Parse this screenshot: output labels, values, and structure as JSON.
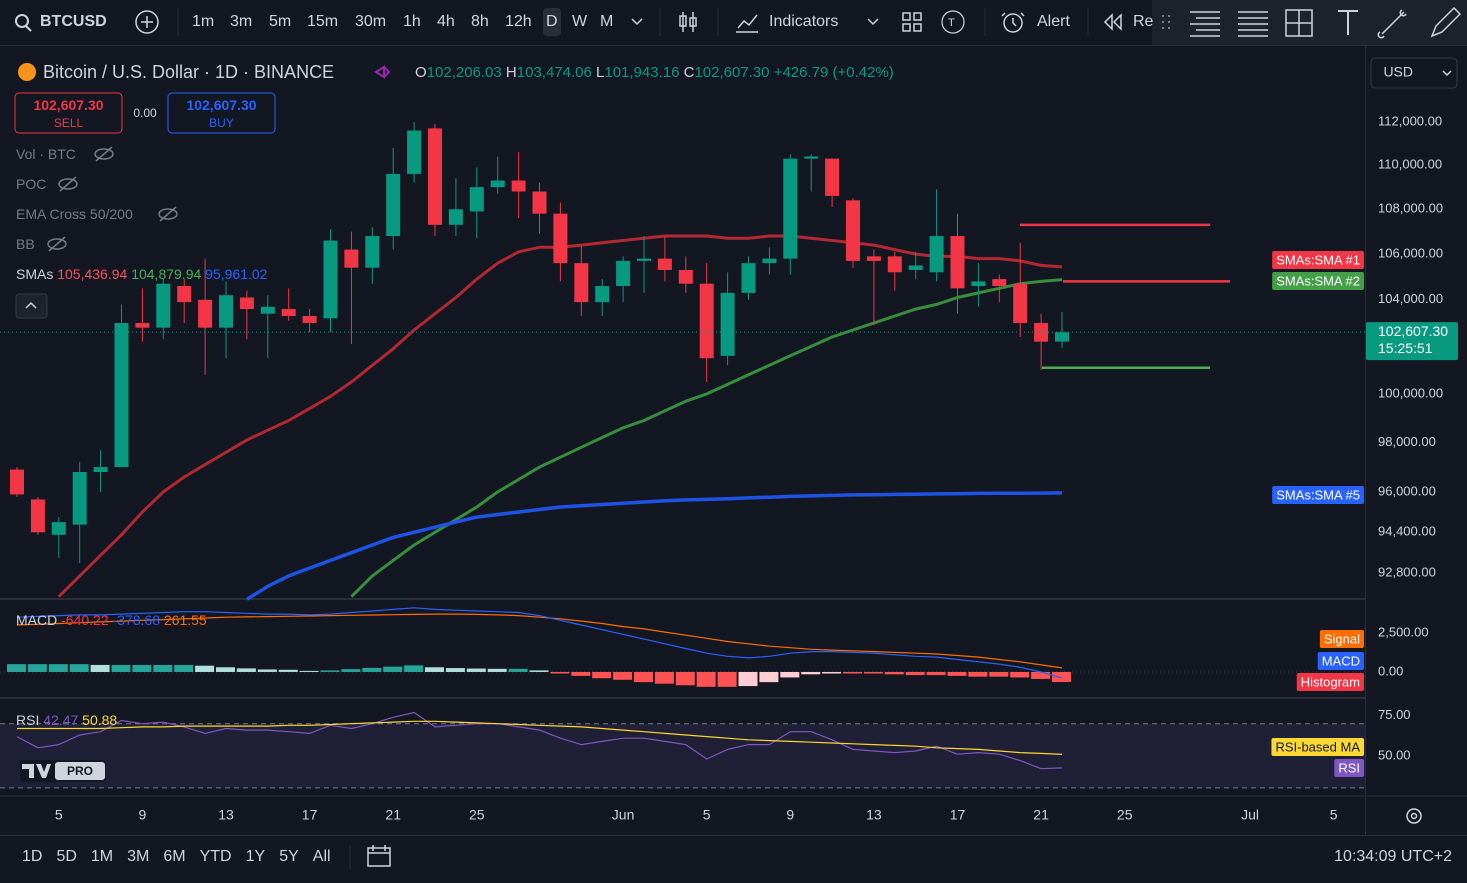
{
  "toolbar": {
    "symbol": "BTCUSD",
    "intervals": [
      "1m",
      "3m",
      "5m",
      "15m",
      "30m",
      "1h",
      "4h",
      "8h",
      "12h",
      "D",
      "W",
      "M"
    ],
    "indicators": "Indicators",
    "badge": "T",
    "alert": "Alert",
    "replay": "Re"
  },
  "legend": {
    "title": "Bitcoin / U.S. Dollar · 1D · BINANCE",
    "o": "O",
    "open": "102,206.03",
    "h": "H",
    "high": "103,474.06",
    "l": "L",
    "low": "101,943.16",
    "c": "C",
    "close": "102,607.30",
    "change": "+426.79 (+0.42%)"
  },
  "trade": {
    "sell_price": "102,607.30",
    "sell": "SELL",
    "spread": "0.00",
    "buy_price": "102,607.30",
    "buy": "BUY"
  },
  "indicators": [
    {
      "name": "Vol · BTC"
    },
    {
      "name": "POC"
    },
    {
      "name": "EMA Cross 50/200"
    },
    {
      "name": "BB"
    }
  ],
  "sma_legend": {
    "name": "SMAs",
    "values": [
      "105,436.94",
      "104,879.94",
      "95,961.02"
    ]
  },
  "currency": "USD",
  "ranges": [
    "1D",
    "5D",
    "1M",
    "3M",
    "6M",
    "YTD",
    "1Y",
    "5Y",
    "All"
  ],
  "clock": "10:34:09 UTC+2",
  "logo": "PRO",
  "chart_data": [
    {
      "type": "candlestick",
      "log_scale": true,
      "grid": false,
      "up_color": "#089981",
      "down_color": "#f23645",
      "categories": [
        null,
        null,
        "5",
        null,
        null,
        null,
        "9",
        null,
        null,
        null,
        "13",
        null,
        null,
        null,
        "17",
        null,
        null,
        null,
        "21",
        null,
        null,
        null,
        "25",
        null,
        null,
        null,
        null,
        null,
        null,
        "Jun",
        null,
        null,
        null,
        "5",
        null,
        null,
        null,
        "9",
        null,
        null,
        null,
        "13",
        null,
        null,
        null,
        "17",
        null,
        null,
        null,
        "21",
        null,
        null,
        null,
        "25",
        null,
        null,
        null,
        null,
        null,
        "Jul",
        null,
        null,
        null,
        "5"
      ],
      "open": [
        96900,
        95700,
        94300,
        94700,
        96800,
        97000,
        103000,
        102800,
        104600,
        104000,
        102800,
        104100,
        103400,
        103600,
        103300,
        103200,
        106200,
        105400,
        106800,
        109600,
        111700,
        107300,
        107900,
        109000,
        109300,
        108800,
        107800,
        105600,
        103900,
        104600,
        105700,
        105800,
        105300,
        104700,
        101600,
        104300,
        105600,
        105800,
        110300,
        110300,
        108400,
        105900,
        105900,
        105300,
        105200,
        106800,
        104600,
        104900,
        104700,
        103000,
        102206.03,
        null,
        null,
        null,
        null,
        null,
        null,
        null,
        null,
        null,
        null,
        null,
        null,
        null
      ],
      "high": [
        97000,
        95800,
        95000,
        97200,
        97700,
        103800,
        104500,
        104900,
        104900,
        105800,
        104800,
        104400,
        104200,
        104500,
        103600,
        107100,
        107000,
        107200,
        110800,
        112000,
        111900,
        109400,
        109900,
        110400,
        110600,
        109200,
        108300,
        106400,
        104900,
        105900,
        106800,
        106800,
        105900,
        105600,
        105200,
        105900,
        106300,
        110500,
        110500,
        110300,
        108500,
        106200,
        106100,
        106100,
        108900,
        107800,
        105600,
        105100,
        106500,
        103400,
        103474.06,
        null,
        null,
        null,
        null,
        null,
        null,
        null,
        null,
        null,
        null,
        null,
        null,
        null
      ],
      "low": [
        95800,
        94300,
        93400,
        93200,
        96000,
        97000,
        102200,
        102300,
        103000,
        100800,
        101500,
        102300,
        101500,
        103100,
        102600,
        102600,
        102100,
        104700,
        106200,
        109200,
        106800,
        106800,
        106700,
        108700,
        107600,
        106900,
        104800,
        103300,
        103300,
        103900,
        104300,
        104800,
        104300,
        100500,
        101200,
        104000,
        105100,
        105100,
        108800,
        108100,
        105400,
        102900,
        104400,
        104900,
        104800,
        103400,
        103700,
        103900,
        102400,
        101000,
        101943.16,
        null,
        null,
        null,
        null,
        null,
        null,
        null,
        null,
        null,
        null,
        null,
        null,
        null
      ],
      "close": [
        95900,
        94400,
        94800,
        96800,
        97000,
        103000,
        102800,
        104700,
        103900,
        102800,
        104200,
        103600,
        103700,
        103300,
        103000,
        106600,
        105400,
        106800,
        109600,
        111600,
        107300,
        108000,
        109000,
        109300,
        108800,
        107800,
        105600,
        103900,
        104600,
        105700,
        105800,
        105300,
        104700,
        101500,
        104300,
        105600,
        105800,
        110300,
        110400,
        108600,
        105700,
        105700,
        105200,
        105500,
        106800,
        104500,
        104800,
        104600,
        103000,
        102200,
        102607.3,
        null,
        null,
        null,
        null,
        null,
        null,
        null,
        null,
        null,
        null,
        null,
        null,
        null
      ],
      "series": [
        {
          "name": "SMAs:SMA #1",
          "color": "#f23645",
          "line_color": "#b22833",
          "values": [
            null,
            null,
            91900,
            92700,
            93500,
            94300,
            95200,
            96000,
            96600,
            97100,
            97600,
            98100,
            98500,
            98900,
            99400,
            99900,
            100500,
            101200,
            101900,
            102700,
            103400,
            104100,
            104900,
            105600,
            106100,
            106300,
            106300,
            106400,
            106500,
            106600,
            106700,
            106800,
            106800,
            106800,
            106700,
            106700,
            106800,
            106800,
            106700,
            106600,
            106500,
            106400,
            106200,
            106000,
            105900,
            105900,
            105800,
            105800,
            105700,
            105500,
            105436.94,
            null,
            null,
            null,
            null,
            null,
            null,
            null,
            null,
            null,
            null,
            null,
            null,
            null
          ]
        },
        {
          "name": "SMAs:SMA #2",
          "color": "#43a047",
          "line_color": "#388e3c",
          "values": [
            null,
            null,
            null,
            null,
            null,
            null,
            null,
            null,
            null,
            null,
            null,
            null,
            null,
            null,
            null,
            null,
            91900,
            92700,
            93300,
            93900,
            94400,
            94900,
            95400,
            96000,
            96500,
            97000,
            97400,
            97800,
            98200,
            98600,
            98900,
            99300,
            99700,
            100000,
            100400,
            100800,
            101200,
            101600,
            102000,
            102400,
            102700,
            103000,
            103300,
            103600,
            103800,
            104100,
            104300,
            104500,
            104700,
            104800,
            104879.94,
            null,
            null,
            null,
            null,
            null,
            null,
            null,
            null,
            null,
            null,
            null,
            null,
            null
          ]
        },
        {
          "name": "SMAs:SMA #5",
          "color": "#2962ff",
          "line_color": "#1e53e5",
          "values": [
            null,
            null,
            null,
            null,
            null,
            null,
            null,
            null,
            null,
            null,
            null,
            91800,
            92300,
            92700,
            93000,
            93300,
            93600,
            93900,
            94200,
            94400,
            94600,
            94800,
            95000,
            95100,
            95200,
            95300,
            95400,
            95450,
            95500,
            95550,
            95600,
            95650,
            95680,
            95700,
            95730,
            95760,
            95790,
            95820,
            95840,
            95860,
            95880,
            95890,
            95900,
            95910,
            95920,
            95930,
            95940,
            95945,
            95950,
            95955,
            95961.02,
            null,
            null,
            null,
            null,
            null,
            null,
            null,
            null,
            null,
            null,
            null,
            null,
            null
          ]
        }
      ],
      "drawings": [
        {
          "value": 107300,
          "color": "#f23645"
        },
        {
          "value": 104800,
          "color": "#f23645"
        },
        {
          "value": 101100,
          "color": "#4caf50"
        }
      ],
      "price_label": {
        "price": "102,607.30",
        "countdown": "15:25:51"
      },
      "ylim": [
        91850,
        115600
      ],
      "yticks": [
        {
          "value": 112000,
          "label": "112,000.00"
        },
        {
          "value": 110000,
          "label": "110,000.00"
        },
        {
          "value": 108000,
          "label": "108,000.00"
        },
        {
          "value": 106000,
          "label": "106,000.00"
        },
        {
          "value": 104000,
          "label": "104,000.00"
        },
        {
          "value": 100000,
          "label": "100,000.00"
        },
        {
          "value": 98000,
          "label": "98,000.00"
        },
        {
          "value": 96000,
          "label": "96,000.00"
        },
        {
          "value": 94400,
          "label": "94,400.00"
        },
        {
          "value": 92800,
          "label": "92,800.00"
        }
      ]
    },
    {
      "type": "macd",
      "title": "MACD",
      "value_labels": [
        "-640.22",
        "-378.68",
        "261.55"
      ],
      "series": [
        {
          "name": "Signal",
          "color": "#ff6d00",
          "values": [
            3000,
            3050,
            3100,
            3150,
            3200,
            3250,
            3300,
            3350,
            3400,
            3450,
            3500,
            3520,
            3540,
            3560,
            3580,
            3600,
            3620,
            3640,
            3660,
            3680,
            3700,
            3700,
            3680,
            3650,
            3600,
            3500,
            3400,
            3250,
            3100,
            2900,
            2750,
            2550,
            2350,
            2150,
            1950,
            1800,
            1650,
            1550,
            1450,
            1400,
            1350,
            1300,
            1250,
            1200,
            1150,
            1050,
            950,
            800,
            650,
            450,
            261.55,
            null,
            null,
            null,
            null,
            null,
            null,
            null,
            null,
            null,
            null,
            null,
            null,
            null
          ]
        },
        {
          "name": "MACD",
          "color": "#2962ff",
          "values": [
            3500,
            3550,
            3600,
            3650,
            3650,
            3700,
            3750,
            3800,
            3850,
            3850,
            3800,
            3750,
            3700,
            3700,
            3650,
            3700,
            3800,
            3900,
            4000,
            4100,
            4000,
            3950,
            3900,
            3850,
            3800,
            3600,
            3300,
            3000,
            2700,
            2400,
            2100,
            1800,
            1500,
            1200,
            1000,
            900,
            1000,
            1200,
            1300,
            1300,
            1250,
            1200,
            1100,
            1000,
            950,
            800,
            650,
            500,
            300,
            0,
            -378.68,
            null,
            null,
            null,
            null,
            null,
            null,
            null,
            null,
            null,
            null,
            null,
            null,
            null
          ]
        },
        {
          "name": "Histogram",
          "color": "#f23645",
          "shades": [
            "#26a69a",
            "#b2dfdb",
            "#ffcdd2",
            "#ff5252"
          ],
          "values": [
            500,
            500,
            500,
            500,
            450,
            450,
            450,
            450,
            450,
            400,
            300,
            230,
            160,
            140,
            70,
            100,
            180,
            260,
            340,
            420,
            300,
            250,
            220,
            200,
            200,
            100,
            -100,
            -250,
            -400,
            -500,
            -650,
            -750,
            -850,
            -950,
            -950,
            -900,
            -650,
            -350,
            -150,
            -100,
            -100,
            -100,
            -150,
            -200,
            -200,
            -250,
            -300,
            -300,
            -350,
            -450,
            -640.22,
            null,
            null,
            null,
            null,
            null,
            null,
            null,
            null,
            null,
            null,
            null,
            null,
            null
          ]
        }
      ],
      "ylim": [
        -1600,
        4600
      ],
      "yticks": [
        {
          "value": 2500,
          "label": "2,500.00"
        },
        {
          "value": 0,
          "label": "0.00"
        }
      ]
    },
    {
      "type": "line",
      "title": "RSI",
      "value_labels": [
        "42.47",
        "50.88"
      ],
      "bands": [
        70,
        30
      ],
      "series": [
        {
          "name": "RSI",
          "color": "#7e57c2",
          "values": [
            62,
            55,
            57,
            63,
            65,
            72,
            70,
            71,
            68,
            64,
            67,
            66,
            66,
            65,
            64,
            69,
            67,
            70,
            74,
            77,
            68,
            69,
            70,
            70,
            68,
            66,
            61,
            57,
            59,
            61,
            61,
            59,
            57,
            48,
            54,
            57,
            57,
            65,
            65,
            60,
            54,
            53,
            52,
            53,
            56,
            51,
            52,
            51,
            47,
            42,
            42.47,
            null,
            null,
            null,
            null,
            null,
            null,
            null,
            null,
            null,
            null,
            null,
            null,
            null
          ]
        },
        {
          "name": "RSI-based MA",
          "color": "#fdd835",
          "values": [
            67,
            67,
            67,
            67,
            67,
            67.5,
            68,
            68,
            68.5,
            68.5,
            68.5,
            68.5,
            68.5,
            69,
            69,
            69.5,
            70,
            70.5,
            71,
            71.5,
            71.5,
            71,
            70.5,
            70,
            69.5,
            69,
            68.5,
            68,
            67,
            66,
            65,
            64,
            63,
            62,
            61,
            60,
            59.5,
            59,
            58.5,
            58,
            57.5,
            57,
            56.5,
            56,
            55,
            54.5,
            54,
            53,
            52,
            51.5,
            50.88,
            null,
            null,
            null,
            null,
            null,
            null,
            null,
            null,
            null,
            null,
            null,
            null,
            null
          ]
        }
      ],
      "ylim": [
        25.6,
        85.4
      ],
      "yticks": [
        {
          "value": 75,
          "label": "75.00"
        },
        {
          "value": 50,
          "label": "50.00"
        }
      ]
    }
  ]
}
